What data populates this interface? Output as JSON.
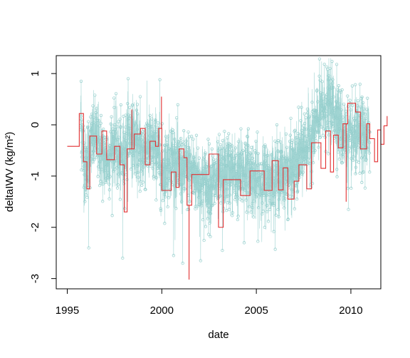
{
  "chart_data": {
    "type": "line",
    "title": "",
    "xlabel": "date",
    "ylabel": "deltaIWV (kg/m²)",
    "xlim": [
      "1994-06-01",
      "2011-08-01"
    ],
    "ylim": [
      -3.2,
      1.35
    ],
    "x_ticks": [
      {
        "value": "1995-01-01",
        "label": "1995"
      },
      {
        "value": "2000-01-01",
        "label": "2000"
      },
      {
        "value": "2005-01-01",
        "label": "2005"
      },
      {
        "value": "2010-01-01",
        "label": "2010"
      }
    ],
    "y_ticks": [
      {
        "value": 1,
        "label": "1"
      },
      {
        "value": 0,
        "label": "0"
      },
      {
        "value": -1,
        "label": "-1"
      },
      {
        "value": -2,
        "label": "-2"
      },
      {
        "value": -3,
        "label": "-3"
      }
    ],
    "grid": false,
    "legend": "none",
    "series": [
      {
        "style": "points-and-lines",
        "color": "#96cfcd",
        "anchors": [
          [
            "1995-09-15",
            0.1
          ],
          [
            "1995-10-20",
            -0.3
          ],
          [
            "1995-12-01",
            -0.9
          ],
          [
            "1996-02-01",
            -0.6
          ],
          [
            "1996-04-15",
            -0.35
          ],
          [
            "1996-07-01",
            -0.2
          ],
          [
            "1996-10-01",
            -0.5
          ],
          [
            "1997-01-01",
            -0.75
          ],
          [
            "1997-04-01",
            -0.6
          ],
          [
            "1997-07-01",
            -0.3
          ],
          [
            "1997-10-01",
            -0.7
          ],
          [
            "1998-01-01",
            -0.6
          ],
          [
            "1998-04-01",
            -0.15
          ],
          [
            "1998-07-01",
            -0.25
          ],
          [
            "1998-10-01",
            -0.5
          ],
          [
            "1999-01-01",
            -0.6
          ],
          [
            "1999-04-01",
            -0.35
          ],
          [
            "1999-07-01",
            -0.5
          ],
          [
            "1999-10-01",
            -0.45
          ],
          [
            "2000-01-01",
            -0.9
          ],
          [
            "2000-04-01",
            -0.8
          ],
          [
            "2000-07-01",
            -0.6
          ],
          [
            "2000-10-01",
            -0.75
          ],
          [
            "2001-01-01",
            -0.9
          ],
          [
            "2001-07-01",
            -0.85
          ],
          [
            "2002-01-01",
            -1.1
          ],
          [
            "2002-07-01",
            -1.2
          ],
          [
            "2003-01-01",
            -1.1
          ],
          [
            "2003-07-01",
            -0.9
          ],
          [
            "2004-01-01",
            -1.0
          ],
          [
            "2004-07-01",
            -0.85
          ],
          [
            "2005-01-01",
            -1.15
          ],
          [
            "2005-07-01",
            -1.05
          ],
          [
            "2006-01-01",
            -1.0
          ],
          [
            "2006-07-01",
            -0.95
          ],
          [
            "2007-01-01",
            -0.9
          ],
          [
            "2007-07-01",
            -0.45
          ],
          [
            "2008-01-01",
            -0.15
          ],
          [
            "2008-07-01",
            0.3
          ],
          [
            "2009-01-01",
            0.4
          ],
          [
            "2009-07-01",
            -0.1
          ],
          [
            "2010-01-01",
            -0.35
          ],
          [
            "2010-07-01",
            -0.2
          ],
          [
            "2011-01-01",
            -0.3
          ]
        ],
        "noise_sd": 0.38,
        "spikes": [
          [
            "1995-09-25",
            0.85
          ],
          [
            "1996-02-20",
            -2.4
          ],
          [
            "1997-12-05",
            -2.6
          ],
          [
            "1998-03-20",
            0.9
          ],
          [
            "1998-11-10",
            0.55
          ],
          [
            "1999-11-25",
            0.88
          ],
          [
            "2000-08-15",
            -2.55
          ],
          [
            "2001-02-10",
            -2.7
          ],
          [
            "2002-01-20",
            -2.65
          ],
          [
            "2003-03-15",
            -2.45
          ],
          [
            "2004-05-10",
            -2.3
          ],
          [
            "2005-06-10",
            -2.0
          ],
          [
            "2006-09-01",
            -1.85
          ],
          [
            "2008-05-01",
            0.95
          ],
          [
            "2009-04-01",
            1.18
          ],
          [
            "2009-11-15",
            -1.65
          ]
        ]
      },
      {
        "style": "step",
        "color": "#e22f30",
        "steps": [
          [
            "1995-01-01",
            -0.42
          ],
          [
            "1995-08-20",
            0.22
          ],
          [
            "1995-11-10",
            -0.72
          ],
          [
            "1996-01-15",
            -1.25
          ],
          [
            "1996-03-10",
            -0.22
          ],
          [
            "1996-07-20",
            -0.57
          ],
          [
            "1996-11-01",
            -0.12
          ],
          [
            "1997-02-01",
            -0.68
          ],
          [
            "1997-07-01",
            -0.42
          ],
          [
            "1997-10-15",
            -0.78
          ],
          [
            "1998-01-05",
            -1.7
          ],
          [
            "1998-03-01",
            -0.47
          ],
          [
            "1998-07-15",
            -0.18
          ],
          [
            "1998-11-15",
            -0.07
          ],
          [
            "1999-02-15",
            -0.78
          ],
          [
            "1999-05-15",
            -0.32
          ],
          [
            "1999-09-01",
            -0.42
          ],
          [
            "1999-11-01",
            -0.07
          ],
          [
            "2000-01-01",
            -1.28
          ],
          [
            "2000-07-01",
            -0.92
          ],
          [
            "2000-10-01",
            -1.22
          ],
          [
            "2000-12-01",
            -0.47
          ],
          [
            "2001-03-01",
            -0.64
          ],
          [
            "2001-05-01",
            -1.57
          ],
          [
            "2001-08-01",
            -0.97
          ],
          [
            "2002-07-01",
            -0.57
          ],
          [
            "2003-01-01",
            -2.0
          ],
          [
            "2003-04-01",
            -1.07
          ],
          [
            "2004-03-01",
            -1.38
          ],
          [
            "2004-09-01",
            -0.9
          ],
          [
            "2005-06-01",
            -1.28
          ],
          [
            "2005-11-01",
            -0.7
          ],
          [
            "2006-03-01",
            -1.27
          ],
          [
            "2006-06-01",
            -0.84
          ],
          [
            "2006-09-01",
            -1.45
          ],
          [
            "2007-01-01",
            -1.1
          ],
          [
            "2007-04-01",
            -0.78
          ],
          [
            "2007-09-01",
            -1.25
          ],
          [
            "2007-12-01",
            -0.35
          ],
          [
            "2008-06-01",
            -0.85
          ],
          [
            "2008-09-01",
            -0.12
          ],
          [
            "2008-12-01",
            -0.92
          ],
          [
            "2009-02-01",
            -0.2
          ],
          [
            "2009-05-01",
            -0.45
          ],
          [
            "2009-08-01",
            0.02
          ],
          [
            "2009-11-01",
            0.42
          ],
          [
            "2010-04-01",
            0.25
          ],
          [
            "2010-07-01",
            -0.47
          ],
          [
            "2010-11-01",
            0.02
          ],
          [
            "2011-01-01",
            -0.27
          ],
          [
            "2011-04-01",
            -0.72
          ],
          [
            "2011-06-01",
            -0.1
          ],
          [
            "2011-08-01",
            -0.38
          ],
          [
            "2011-10-01",
            -0.02
          ],
          [
            "2011-12-01",
            0.17
          ]
        ],
        "spikes": [
          [
            "1998-06-01",
            0.3
          ],
          [
            "1999-12-25",
            0.55
          ],
          [
            "2001-06-10",
            -3.02
          ],
          [
            "2009-10-01",
            -1.5
          ]
        ]
      }
    ]
  }
}
